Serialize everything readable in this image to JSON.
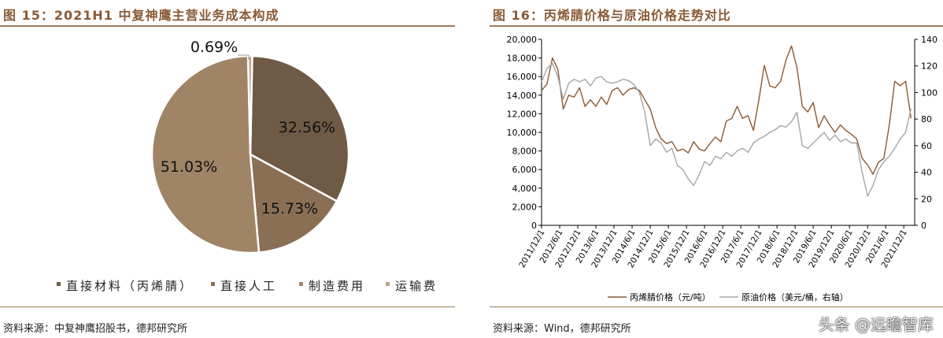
{
  "left": {
    "title": "图 15：2021H1 中复神鹰主营业务成本构成",
    "source": "资料来源：中复神鹰招股书，德邦研究所",
    "chart_data": {
      "type": "pie",
      "slices": [
        {
          "label": "直接材料（丙烯腈）",
          "value": 32.56,
          "display": "32.56%",
          "color": "#6e5a45"
        },
        {
          "label": "直接人工",
          "value": 15.73,
          "display": "15.73%",
          "color": "#8a6f55"
        },
        {
          "label": "制造费用",
          "value": 51.03,
          "display": "51.03%",
          "color": "#a08466"
        },
        {
          "label": "运输费",
          "value": 0.69,
          "display": "0.69%",
          "color": "#b8a58f"
        }
      ],
      "legend_placement": "bottom"
    }
  },
  "right": {
    "title": "图 16：丙烯腈价格与原油价格走势对比",
    "source": "资料来源：Wind，德邦研究所",
    "chart_data": {
      "type": "line",
      "x_tick_labels": [
        "2011/12/1",
        "2012/6/1",
        "2012/12/1",
        "2013/6/1",
        "2013/12/1",
        "2014/6/1",
        "2014/12/1",
        "2015/6/1",
        "2015/12/1",
        "2016/6/1",
        "2016/12/1",
        "2017/6/1",
        "2017/12/1",
        "2018/6/1",
        "2018/12/1",
        "2019/6/1",
        "2019/12/1",
        "2020/6/1",
        "2020/12/1",
        "2021/6/1",
        "2021/12/1"
      ],
      "y_left": {
        "min": 0,
        "max": 20000,
        "ticks": [
          "0",
          "2,000",
          "4,000",
          "6,000",
          "8,000",
          "10,000",
          "12,000",
          "14,000",
          "16,000",
          "18,000",
          "20,000"
        ]
      },
      "y_right": {
        "min": 0,
        "max": 140,
        "ticks": [
          "0",
          "20",
          "40",
          "60",
          "80",
          "100",
          "120",
          "140"
        ]
      },
      "series": [
        {
          "name": "丙烯腈价格（元/吨）",
          "axis": "left",
          "color": "#8b5a32",
          "x": [
            0,
            0.3,
            0.6,
            0.9,
            1.2,
            1.5,
            1.8,
            2.1,
            2.4,
            2.7,
            3.0,
            3.3,
            3.6,
            3.9,
            4.2,
            4.5,
            4.8,
            5.1,
            5.4,
            5.7,
            6.0,
            6.3,
            6.6,
            6.9,
            7.2,
            7.5,
            7.8,
            8.1,
            8.4,
            8.7,
            9.0,
            9.3,
            9.6,
            9.9,
            10.2,
            10.5,
            10.8,
            11.1,
            11.4,
            11.7,
            12.0,
            12.3,
            12.6,
            12.9,
            13.2,
            13.5,
            13.8,
            14.1,
            14.4,
            14.7,
            15.0,
            15.3,
            15.6,
            15.9,
            16.2,
            16.5,
            16.8,
            17.1,
            17.4,
            17.7,
            18.0,
            18.3,
            18.6,
            18.9,
            19.2,
            19.5,
            19.8,
            20.1,
            20.4
          ],
          "values": [
            14500,
            15200,
            18000,
            16800,
            12500,
            14000,
            13800,
            14800,
            12800,
            13500,
            12800,
            13800,
            13000,
            14500,
            14800,
            14000,
            14600,
            14800,
            14500,
            13500,
            12500,
            10500,
            9300,
            8800,
            9000,
            8000,
            8200,
            7800,
            9000,
            8200,
            8000,
            8800,
            9500,
            9000,
            11200,
            11500,
            12800,
            11500,
            11800,
            10200,
            13500,
            17200,
            15000,
            14800,
            15500,
            17800,
            19300,
            17000,
            12800,
            12200,
            13200,
            10500,
            11800,
            10800,
            10000,
            10800,
            10200,
            9800,
            9300,
            7200,
            6500,
            5500,
            6800,
            7200,
            10800,
            15500,
            15000,
            15500,
            11500
          ]
        },
        {
          "name": "原油价格（美元/桶，右轴）",
          "axis": "right",
          "color": "#a6a6a6",
          "x": [
            0,
            0.3,
            0.6,
            0.9,
            1.2,
            1.5,
            1.8,
            2.1,
            2.4,
            2.7,
            3.0,
            3.3,
            3.6,
            3.9,
            4.2,
            4.5,
            4.8,
            5.1,
            5.4,
            5.7,
            6.0,
            6.3,
            6.6,
            6.9,
            7.2,
            7.5,
            7.8,
            8.1,
            8.4,
            8.7,
            9.0,
            9.3,
            9.6,
            9.9,
            10.2,
            10.5,
            10.8,
            11.1,
            11.4,
            11.7,
            12.0,
            12.3,
            12.6,
            12.9,
            13.2,
            13.5,
            13.8,
            14.1,
            14.4,
            14.7,
            15.0,
            15.3,
            15.6,
            15.9,
            16.2,
            16.5,
            16.8,
            17.1,
            17.4,
            17.7,
            18.0,
            18.3,
            18.6,
            18.9,
            19.2,
            19.5,
            19.8,
            20.1,
            20.4
          ],
          "values": [
            108,
            118,
            122,
            112,
            95,
            107,
            110,
            108,
            110,
            105,
            111,
            112,
            108,
            107,
            108,
            110,
            109,
            106,
            100,
            85,
            60,
            65,
            62,
            55,
            58,
            45,
            42,
            35,
            30,
            38,
            48,
            45,
            52,
            50,
            55,
            52,
            56,
            58,
            55,
            62,
            65,
            67,
            70,
            72,
            75,
            74,
            78,
            85,
            60,
            58,
            62,
            66,
            70,
            64,
            68,
            63,
            65,
            62,
            62,
            40,
            22,
            30,
            42,
            48,
            52,
            58,
            65,
            70,
            88
          ]
        }
      ],
      "legend_placement": "bottom"
    }
  },
  "watermark": "头条 @远瞻智库"
}
